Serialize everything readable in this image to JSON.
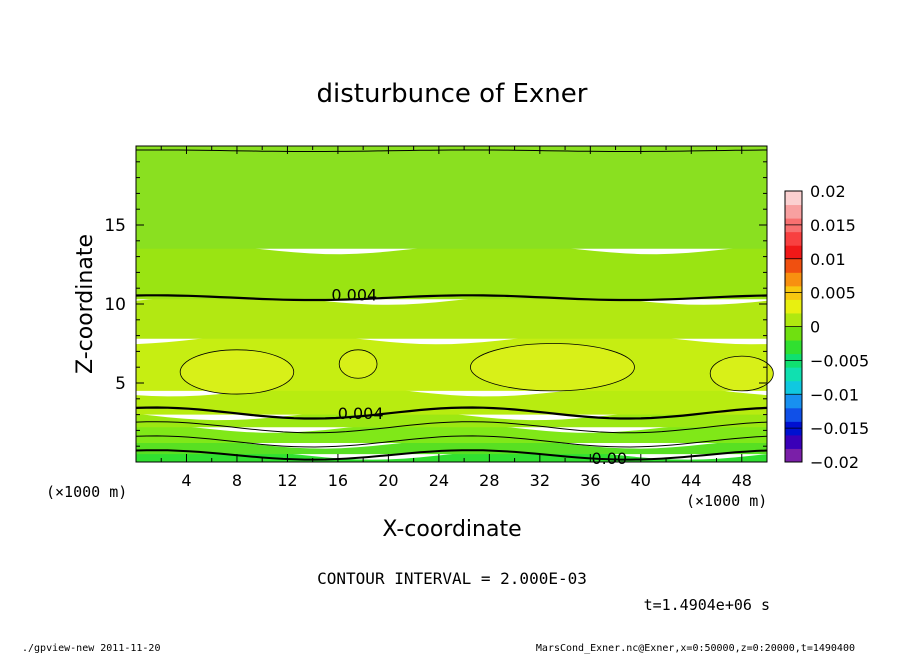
{
  "chart_data": {
    "type": "heatmap",
    "title": "disturbunce of Exner",
    "xlabel": "X-coordinate",
    "ylabel": "Z-coordinate",
    "x_unit_left": "(×1000 m)",
    "x_unit_right": "(×1000 m)",
    "xlim": [
      0,
      50
    ],
    "ylim": [
      0,
      20
    ],
    "x_ticks": [
      4,
      8,
      12,
      16,
      20,
      24,
      28,
      32,
      36,
      40,
      44,
      48
    ],
    "y_ticks": [
      5,
      10,
      15
    ],
    "contour_interval_text": "CONTOUR INTERVAL = 2.000E-03",
    "time_text": "t=1.4904e+06 s",
    "contour_labels": [
      {
        "text": "0.004",
        "x": 17.3,
        "z": 10.6
      },
      {
        "text": "0.004",
        "x": 17.8,
        "z": 3.1
      },
      {
        "text": "0.00",
        "x": 37.5,
        "z": 0.25
      }
    ],
    "colorbar": {
      "labels": [
        "0.02",
        "0.015",
        "0.01",
        "0.005",
        "0",
        "−0.005",
        "−0.01",
        "−0.015",
        "−0.02"
      ],
      "range": [
        -0.02,
        0.02
      ],
      "colors": [
        "#7a1fa8",
        "#3a00b8",
        "#0010d0",
        "#1050e8",
        "#1890f0",
        "#10c8e0",
        "#10e0b0",
        "#10e070",
        "#30e030",
        "#70e010",
        "#b0e810",
        "#e8f010",
        "#f8c810",
        "#f89010",
        "#f05010",
        "#f01818",
        "#f84040",
        "#f87070",
        "#f8a0a0",
        "#fbd0d0"
      ]
    },
    "field_bands": [
      {
        "z0": 0,
        "z1": 0.5,
        "value": -0.0005,
        "color": "#30e030"
      },
      {
        "z0": 0.5,
        "z1": 1.2,
        "value": 0.0005,
        "color": "#58e022"
      },
      {
        "z0": 1.2,
        "z1": 2.2,
        "value": 0.0015,
        "color": "#80e818"
      },
      {
        "z0": 2.2,
        "z1": 3.0,
        "value": 0.0025,
        "color": "#9ce812"
      },
      {
        "z0": 3.0,
        "z1": 4.5,
        "value": 0.0045,
        "color": "#b8ec10"
      },
      {
        "z0": 4.5,
        "z1": 7.8,
        "value": 0.005,
        "color": "#c6ee12"
      },
      {
        "z0": 7.8,
        "z1": 10.3,
        "value": 0.0045,
        "color": "#b2e812"
      },
      {
        "z0": 10.3,
        "z1": 13.5,
        "value": 0.0035,
        "color": "#9ae412"
      },
      {
        "z0": 13.5,
        "z1": 20,
        "value": 0.0025,
        "color": "#8ae020"
      }
    ],
    "highs": [
      {
        "cx": 8,
        "cz": 5.7,
        "rx": 4.5,
        "rz": 1.4,
        "value": 0.0062
      },
      {
        "cx": 17.6,
        "cz": 6.2,
        "rx": 1.5,
        "rz": 0.9,
        "value": 0.0062
      },
      {
        "cx": 33,
        "cz": 6.0,
        "rx": 6.5,
        "rz": 1.5,
        "value": 0.0062
      },
      {
        "cx": 48,
        "cz": 5.6,
        "rx": 2.5,
        "rz": 1.1,
        "value": 0.0062
      }
    ],
    "high_color": "#d8f018",
    "footer_left": "./gpview-new   2011-11-20",
    "footer_right": "MarsCond_Exner.nc@Exner,x=0:50000,z=0:20000,t=1490400"
  }
}
